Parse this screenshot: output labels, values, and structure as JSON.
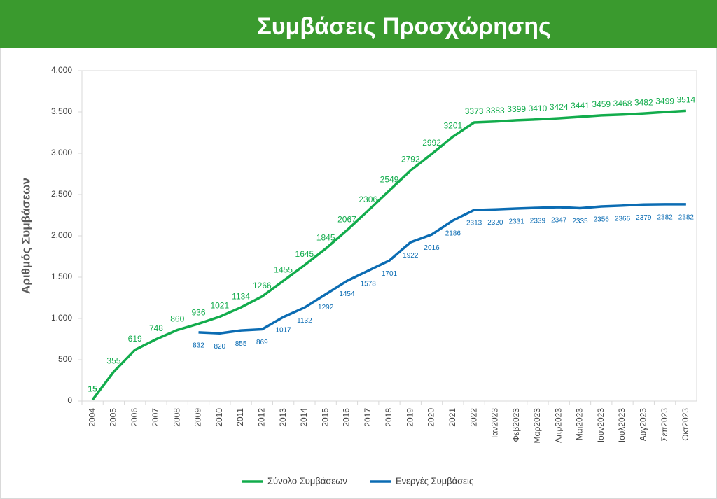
{
  "chart_data": {
    "type": "line",
    "title": "Συμβάσεις Προσχώρησης",
    "y_label": "Αριθμός Συμβάσεων",
    "categories": [
      "2004",
      "2005",
      "2006",
      "2007",
      "2008",
      "2009",
      "2010",
      "2011",
      "2012",
      "2013",
      "2014",
      "2015",
      "2016",
      "2017",
      "2018",
      "2019",
      "2020",
      "2021",
      "2022",
      "Ιαν2023",
      "Φεβ2023",
      "Μαρ2023",
      "Απρ2023",
      "Μαι2023",
      "Ιουν2023",
      "Ιουλ2023",
      "Αυγ2023",
      "Σεπ2023",
      "Οκτ2023"
    ],
    "series": [
      {
        "name": "Σύνολο Συμβάσεων",
        "color": "#12ac4c",
        "values": [
          15,
          355,
          619,
          748,
          860,
          936,
          1021,
          1134,
          1266,
          1455,
          1645,
          1845,
          2067,
          2306,
          2549,
          2792,
          2992,
          3201,
          3373,
          3383,
          3399,
          3410,
          3424,
          3441,
          3459,
          3468,
          3482,
          3499,
          3514
        ]
      },
      {
        "name": "Ενεργές Συμβάσεις",
        "color": "#0b6cb3",
        "values": [
          null,
          null,
          null,
          null,
          null,
          832,
          820,
          855,
          869,
          1017,
          1132,
          1292,
          1454,
          1578,
          1701,
          1922,
          2016,
          2186,
          2313,
          2320,
          2331,
          2339,
          2347,
          2335,
          2356,
          2366,
          2379,
          2382,
          2382
        ]
      }
    ],
    "ylim": [
      0,
      4000
    ],
    "yticks": [
      0,
      500,
      {
        "value": 1000,
        "label": "1.000"
      },
      {
        "value": 1500,
        "label": "1.500"
      },
      {
        "value": 2000,
        "label": "2.000"
      },
      {
        "value": 2500,
        "label": "2.500"
      },
      {
        "value": 3000,
        "label": "3.000"
      },
      {
        "value": 3500,
        "label": "3.500"
      },
      {
        "value": 4000,
        "label": "4.000"
      }
    ],
    "grid": false,
    "legend": "bottom"
  }
}
